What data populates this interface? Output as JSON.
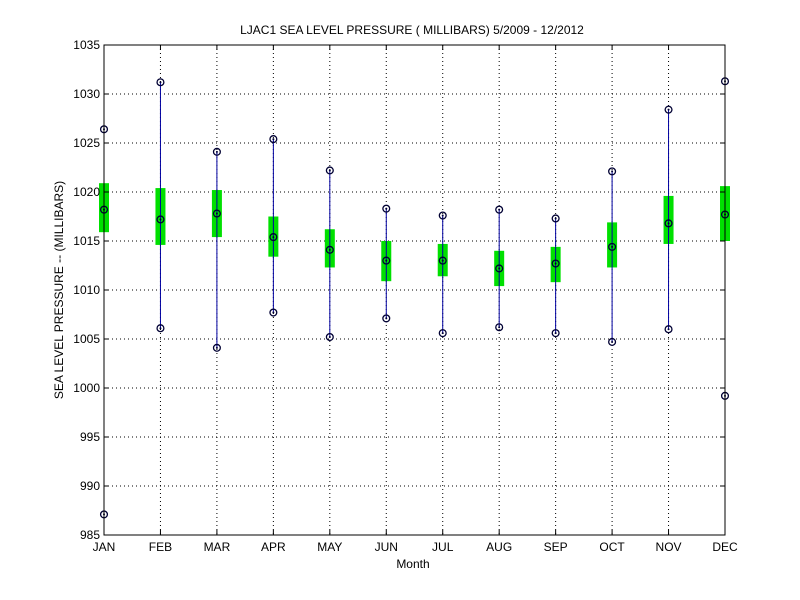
{
  "chart_data": {
    "type": "box",
    "title": "LJAC1  SEA LEVEL PRESSURE ( MILLIBARS) 5/2009 - 12/2012",
    "xlabel": "Month",
    "ylabel": "SEA LEVEL PRESSURE -- (MILLIBARS)",
    "ylim": [
      985,
      1035
    ],
    "yticks": [
      "985",
      "990",
      "995",
      "1000",
      "1005",
      "1010",
      "1015",
      "1020",
      "1025",
      "1030",
      "1035"
    ],
    "categories": [
      "JAN",
      "FEB",
      "MAR",
      "APR",
      "MAY",
      "JUN",
      "JUL",
      "AUG",
      "SEP",
      "OCT",
      "NOV",
      "DEC"
    ],
    "max": [
      1026.4,
      1031.2,
      1024.1,
      1025.4,
      1022.2,
      1018.3,
      1017.6,
      1018.2,
      1017.3,
      1022.1,
      1028.4,
      1031.3
    ],
    "upper": [
      1020.9,
      1020.4,
      1020.2,
      1017.5,
      1016.2,
      1015.0,
      1014.7,
      1014.0,
      1014.4,
      1016.9,
      1019.6,
      1020.6
    ],
    "mean": [
      1018.2,
      1017.2,
      1017.8,
      1015.4,
      1014.1,
      1013.0,
      1013.0,
      1012.2,
      1012.7,
      1014.4,
      1016.8,
      1017.7
    ],
    "lower": [
      1015.9,
      1014.6,
      1015.4,
      1013.4,
      1012.3,
      1010.9,
      1011.4,
      1010.4,
      1010.8,
      1012.3,
      1014.7,
      1015.0
    ],
    "min": [
      987.1,
      1006.1,
      1004.1,
      1007.7,
      1005.2,
      1007.1,
      1005.6,
      1006.2,
      1005.6,
      1004.7,
      1006.0,
      999.2
    ],
    "grid": true,
    "colors": {
      "whisker": "#0000a0",
      "box": "#00e000",
      "marker": "#000033",
      "grid": "#000000"
    }
  }
}
